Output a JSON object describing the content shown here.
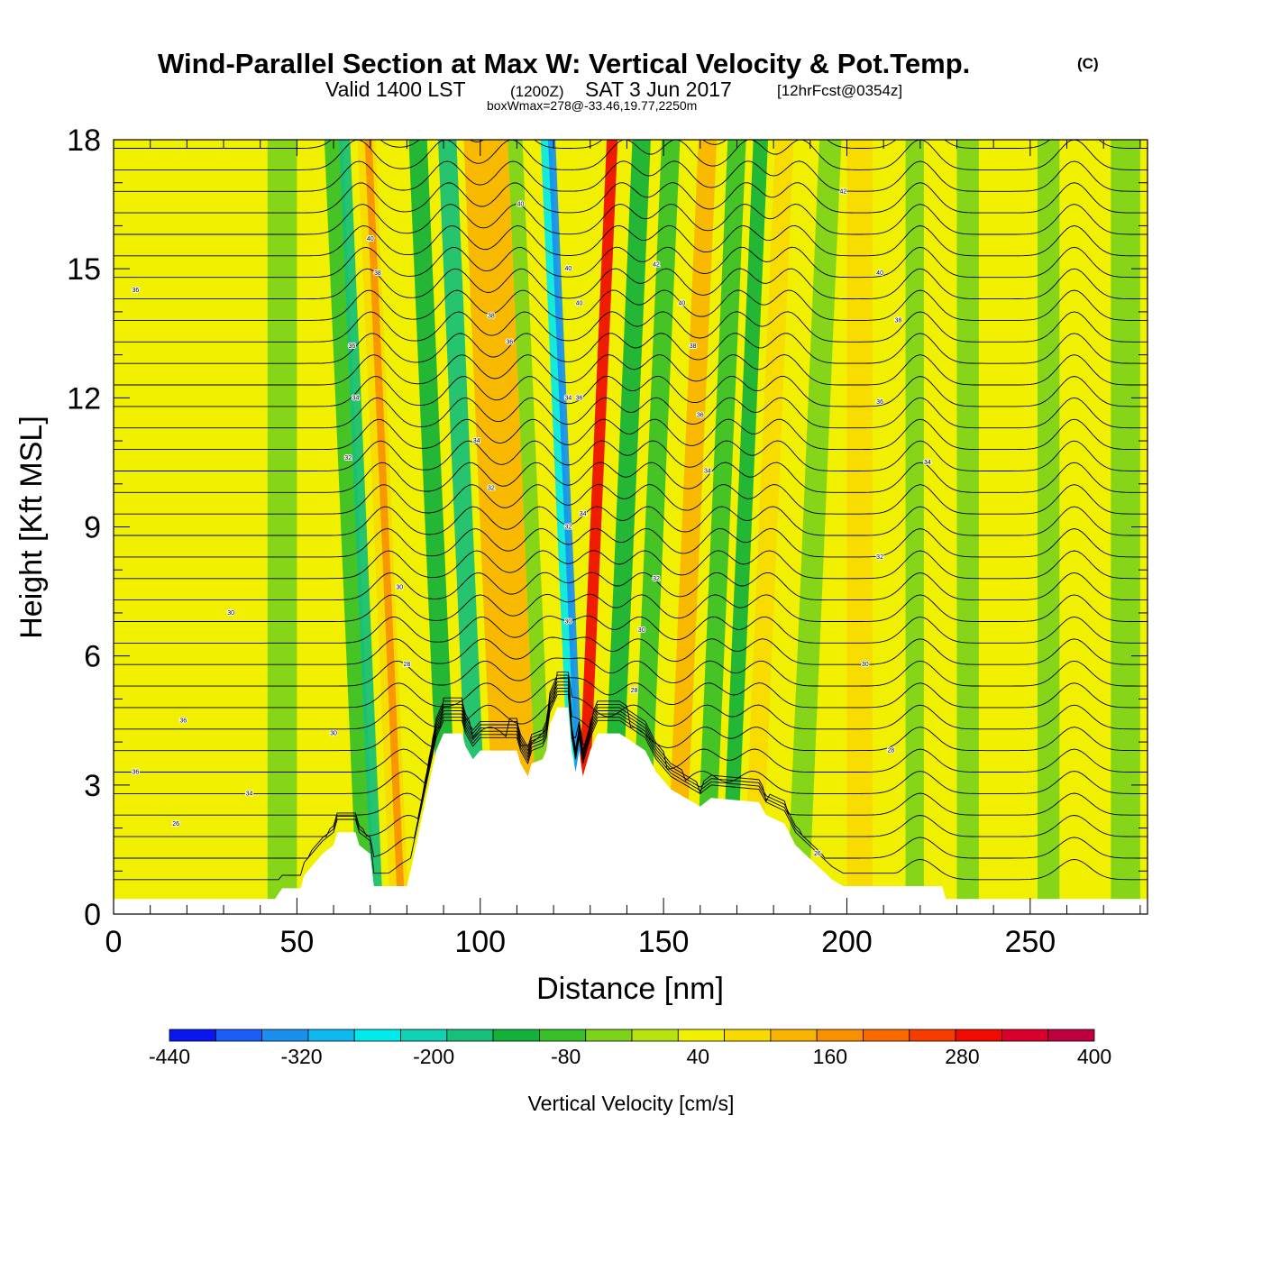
{
  "chart_data": {
    "type": "heatmap",
    "title": "Wind-Parallel Section at Max W: Vertical Velocity & Pot.Temp.",
    "copyright": "(C)",
    "subtitle": {
      "valid": "Valid 1400 LST",
      "utc": "(1200Z)",
      "date": "SAT 3 Jun 2017",
      "forecast": "[12hrFcst@0354z]"
    },
    "annotation": "boxWmax=278@-33.46,19.77,2250m",
    "xlabel": "Distance [nm]",
    "ylabel": "Height [Kft MSL]",
    "xlim": [
      0,
      282
    ],
    "ylim": [
      0,
      18
    ],
    "xticks": [
      0,
      50,
      100,
      150,
      200,
      250
    ],
    "yticks": [
      0,
      3,
      6,
      9,
      12,
      15,
      18
    ],
    "colorbar": {
      "label": "Vertical Velocity [cm/s]",
      "ticks": [
        -440,
        -320,
        -200,
        -80,
        40,
        160,
        280,
        400
      ],
      "bounds": [
        -440,
        400
      ],
      "colors": [
        "#0a16f0",
        "#1a5ef5",
        "#1890f0",
        "#10b8f0",
        "#00ecec",
        "#10d2b4",
        "#16c07a",
        "#12b23a",
        "#38c028",
        "#7ed21a",
        "#b8e40e",
        "#f0f000",
        "#f8da00",
        "#f8b400",
        "#f89000",
        "#f86a00",
        "#f83c00",
        "#f00a00",
        "#d8002c",
        "#c0003e"
      ]
    },
    "bands": [
      {
        "x": 5,
        "w": 7,
        "value": 40
      },
      {
        "x": 42,
        "w": 8,
        "value": -40
      },
      {
        "x": 62,
        "w": 5,
        "value": -80
      },
      {
        "x": 66,
        "w": 3,
        "value": -160
      },
      {
        "x": 71,
        "w": 5,
        "value": 100
      },
      {
        "x": 73,
        "w": 2,
        "value": 170
      },
      {
        "x": 85,
        "w": 5,
        "value": -120
      },
      {
        "x": 93,
        "w": 5,
        "value": -160
      },
      {
        "x": 100,
        "w": 6,
        "value": 110
      },
      {
        "x": 106,
        "w": 6,
        "value": 120
      },
      {
        "x": 112,
        "w": 4,
        "value": -60
      },
      {
        "x": 121,
        "w": 3,
        "value": -250
      },
      {
        "x": 123,
        "w": 2,
        "value": -350
      },
      {
        "x": 130,
        "w": 3,
        "value": 280
      },
      {
        "x": 137,
        "w": 5,
        "value": -120
      },
      {
        "x": 145,
        "w": 5,
        "value": -80
      },
      {
        "x": 155,
        "w": 5,
        "value": 110
      },
      {
        "x": 163,
        "w": 5,
        "value": -70
      },
      {
        "x": 170,
        "w": 4,
        "value": -140
      },
      {
        "x": 176,
        "w": 5,
        "value": 100
      },
      {
        "x": 188,
        "w": 6,
        "value": -60
      },
      {
        "x": 200,
        "w": 7,
        "value": 70
      },
      {
        "x": 216,
        "w": 5,
        "value": -40
      },
      {
        "x": 230,
        "w": 6,
        "value": -50
      },
      {
        "x": 252,
        "w": 6,
        "value": -40
      },
      {
        "x": 272,
        "w": 8,
        "value": -40
      }
    ],
    "terrain": [
      [
        0,
        0.35
      ],
      [
        44,
        0.35
      ],
      [
        46,
        0.6
      ],
      [
        51,
        0.6
      ],
      [
        52,
        0.9
      ],
      [
        54,
        1.1
      ],
      [
        57,
        1.4
      ],
      [
        60,
        1.6
      ],
      [
        61,
        1.9
      ],
      [
        66,
        1.9
      ],
      [
        67,
        1.6
      ],
      [
        70,
        1.4
      ],
      [
        71,
        0.65
      ],
      [
        80,
        0.65
      ],
      [
        81,
        1.0
      ],
      [
        83,
        1.8
      ],
      [
        86,
        3.0
      ],
      [
        88,
        3.8
      ],
      [
        90,
        4.2
      ],
      [
        95,
        4.2
      ],
      [
        96,
        3.9
      ],
      [
        98,
        3.6
      ],
      [
        100,
        3.8
      ],
      [
        110,
        3.8
      ],
      [
        111,
        3.5
      ],
      [
        113,
        3.2
      ],
      [
        114,
        3.5
      ],
      [
        117,
        3.6
      ],
      [
        118,
        3.8
      ],
      [
        119,
        4.4
      ],
      [
        121,
        4.8
      ],
      [
        124,
        4.8
      ],
      [
        125,
        3.8
      ],
      [
        126,
        3.3
      ],
      [
        127,
        3.8
      ],
      [
        128,
        3.2
      ],
      [
        130,
        3.8
      ],
      [
        132,
        4.2
      ],
      [
        138,
        4.2
      ],
      [
        145,
        3.8
      ],
      [
        148,
        3.3
      ],
      [
        152,
        2.9
      ],
      [
        160,
        2.5
      ],
      [
        163,
        2.7
      ],
      [
        176,
        2.6
      ],
      [
        178,
        2.3
      ],
      [
        183,
        2.1
      ],
      [
        186,
        1.6
      ],
      [
        191,
        1.2
      ],
      [
        196,
        0.8
      ],
      [
        199,
        0.65
      ],
      [
        226,
        0.65
      ],
      [
        227,
        0.35
      ],
      [
        282,
        0.35
      ]
    ],
    "isentropes": {
      "levels_kft": [
        0.8,
        1.3,
        1.8,
        2.3,
        2.8,
        3.3,
        3.8,
        4.3,
        4.8,
        5.3,
        5.8,
        6.3,
        6.8,
        7.3,
        7.8,
        8.3,
        8.8,
        9.3,
        9.8,
        10.3,
        10.8,
        11.3,
        11.8,
        12.3,
        12.8,
        13.3,
        13.8,
        14.3,
        14.8,
        15.3,
        15.8,
        16.3,
        16.8,
        17.3,
        17.8
      ],
      "wave_crests_nm": [
        74,
        98,
        116,
        132,
        146,
        166,
        180,
        220,
        262
      ],
      "labels": [
        {
          "x": 6,
          "y": 14.5,
          "text": "36"
        },
        {
          "x": 19,
          "y": 4.5,
          "text": "36"
        },
        {
          "x": 6,
          "y": 3.3,
          "text": "36"
        },
        {
          "x": 17,
          "y": 2.1,
          "text": "26"
        },
        {
          "x": 37,
          "y": 2.8,
          "text": "34"
        },
        {
          "x": 32,
          "y": 7.0,
          "text": "30"
        },
        {
          "x": 60,
          "y": 4.2,
          "text": "30"
        },
        {
          "x": 64,
          "y": 10.6,
          "text": "32"
        },
        {
          "x": 65,
          "y": 13.2,
          "text": "36"
        },
        {
          "x": 66,
          "y": 12.0,
          "text": "34"
        },
        {
          "x": 70,
          "y": 15.7,
          "text": "40"
        },
        {
          "x": 72,
          "y": 14.9,
          "text": "38"
        },
        {
          "x": 78,
          "y": 7.6,
          "text": "30"
        },
        {
          "x": 80,
          "y": 5.8,
          "text": "28"
        },
        {
          "x": 99,
          "y": 11.0,
          "text": "34"
        },
        {
          "x": 103,
          "y": 9.9,
          "text": "32"
        },
        {
          "x": 103,
          "y": 13.9,
          "text": "38"
        },
        {
          "x": 108,
          "y": 13.3,
          "text": "36"
        },
        {
          "x": 111,
          "y": 16.5,
          "text": "40"
        },
        {
          "x": 124,
          "y": 15.0,
          "text": "40"
        },
        {
          "x": 127,
          "y": 14.2,
          "text": "40"
        },
        {
          "x": 124,
          "y": 12.0,
          "text": "34"
        },
        {
          "x": 127,
          "y": 12.0,
          "text": "36"
        },
        {
          "x": 124,
          "y": 9.0,
          "text": "32"
        },
        {
          "x": 128,
          "y": 9.3,
          "text": "34"
        },
        {
          "x": 124,
          "y": 6.8,
          "text": "30"
        },
        {
          "x": 148,
          "y": 15.1,
          "text": "42"
        },
        {
          "x": 155,
          "y": 14.2,
          "text": "40"
        },
        {
          "x": 158,
          "y": 13.2,
          "text": "38"
        },
        {
          "x": 160,
          "y": 11.6,
          "text": "36"
        },
        {
          "x": 162,
          "y": 10.3,
          "text": "34"
        },
        {
          "x": 148,
          "y": 7.8,
          "text": "32"
        },
        {
          "x": 144,
          "y": 6.6,
          "text": "30"
        },
        {
          "x": 142,
          "y": 5.2,
          "text": "28"
        },
        {
          "x": 199,
          "y": 16.8,
          "text": "42"
        },
        {
          "x": 209,
          "y": 14.9,
          "text": "40"
        },
        {
          "x": 214,
          "y": 13.8,
          "text": "38"
        },
        {
          "x": 209,
          "y": 11.9,
          "text": "36"
        },
        {
          "x": 222,
          "y": 10.5,
          "text": "34"
        },
        {
          "x": 209,
          "y": 8.3,
          "text": "32"
        },
        {
          "x": 205,
          "y": 5.8,
          "text": "30"
        },
        {
          "x": 212,
          "y": 3.8,
          "text": "28"
        },
        {
          "x": 192,
          "y": 1.4,
          "text": "26"
        }
      ]
    }
  }
}
